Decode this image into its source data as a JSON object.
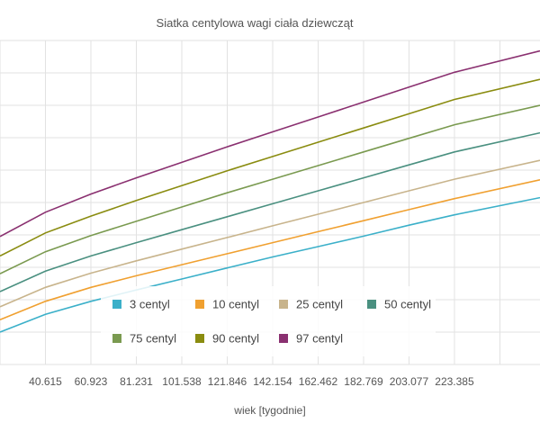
{
  "chart_data": {
    "type": "line",
    "title": "Siatka centylowa wagi ciała dziewcząt",
    "xlabel": "wiek [tygodnie]",
    "ylabel": "",
    "x_ticks": [
      "40.615",
      "60.923",
      "81.231",
      "101.538",
      "121.846",
      "142.154",
      "162.462",
      "182.769",
      "203.077",
      "223.385"
    ],
    "xlim": [
      20.3,
      261.6
    ],
    "ylim": [
      0,
      10
    ],
    "grid": true,
    "legend_position": "bottom-center",
    "x": [
      20.3,
      40.615,
      60.923,
      81.231,
      101.538,
      121.846,
      142.154,
      162.462,
      182.769,
      203.077,
      223.385,
      261.6
    ],
    "series": [
      {
        "name": "3 centyl",
        "color": "#3bb0c9",
        "values": [
          1.0,
          1.55,
          1.95,
          2.3,
          2.64,
          2.98,
          3.32,
          3.64,
          3.96,
          4.3,
          4.62,
          5.15
        ]
      },
      {
        "name": "10 centyl",
        "color": "#f0a030",
        "values": [
          1.38,
          1.95,
          2.38,
          2.74,
          3.08,
          3.42,
          3.76,
          4.1,
          4.44,
          4.78,
          5.12,
          5.7
        ]
      },
      {
        "name": "25 centyl",
        "color": "#c8b48c",
        "values": [
          1.78,
          2.38,
          2.82,
          3.2,
          3.56,
          3.92,
          4.28,
          4.64,
          5.0,
          5.36,
          5.72,
          6.3
        ]
      },
      {
        "name": "50 centyl",
        "color": "#4a9080",
        "values": [
          2.25,
          2.88,
          3.35,
          3.76,
          4.16,
          4.56,
          4.96,
          5.36,
          5.76,
          6.16,
          6.56,
          7.15
        ]
      },
      {
        "name": "75 centyl",
        "color": "#7a9a50",
        "values": [
          2.8,
          3.48,
          3.98,
          4.42,
          4.86,
          5.3,
          5.72,
          6.14,
          6.56,
          6.98,
          7.4,
          8.0
        ]
      },
      {
        "name": "90 centyl",
        "color": "#8a8c10",
        "values": [
          3.35,
          4.06,
          4.58,
          5.06,
          5.52,
          5.98,
          6.42,
          6.86,
          7.3,
          7.74,
          8.18,
          8.8
        ]
      },
      {
        "name": "97 centyl",
        "color": "#8a3070",
        "values": [
          3.95,
          4.7,
          5.26,
          5.76,
          6.24,
          6.72,
          7.18,
          7.64,
          8.1,
          8.56,
          9.02,
          9.68
        ]
      }
    ]
  }
}
